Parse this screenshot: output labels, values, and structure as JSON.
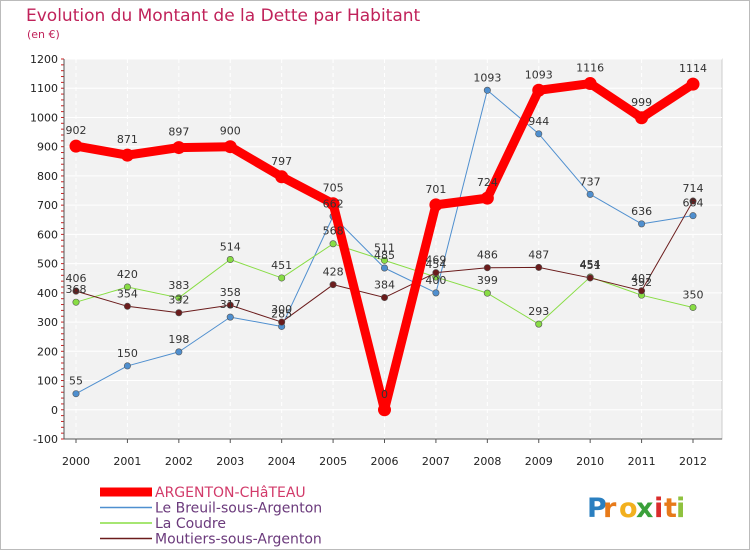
{
  "chart_data": {
    "type": "line",
    "title": "Evolution du Montant de la Dette par Habitant",
    "subtitle": "(en €)",
    "xlabel": "",
    "ylabel": "",
    "categories": [
      "2000",
      "2001",
      "2002",
      "2003",
      "2004",
      "2005",
      "2006",
      "2007",
      "2008",
      "2009",
      "2010",
      "2011",
      "2012"
    ],
    "ylim": [
      -100,
      1200
    ],
    "yticks": [
      -100,
      0,
      100,
      200,
      300,
      400,
      500,
      600,
      700,
      800,
      900,
      1000,
      1100,
      1200
    ],
    "grid": true,
    "legend_position": "bottom-left",
    "series": [
      {
        "name": "ARGENTON-CHâTEAU",
        "color": "#ff0000",
        "values": [
          902,
          871,
          897,
          900,
          797,
          705,
          0,
          701,
          724,
          1093,
          1116,
          999,
          1114
        ]
      },
      {
        "name": "Le Breuil-sous-Argenton",
        "color": "#4f8fcf",
        "values": [
          55,
          150,
          198,
          317,
          285,
          662,
          485,
          400,
          1093,
          944,
          737,
          636,
          664
        ]
      },
      {
        "name": "La Coudre",
        "color": "#88dd44",
        "values": [
          368,
          420,
          383,
          514,
          451,
          568,
          511,
          454,
          399,
          293,
          454,
          392,
          350
        ]
      },
      {
        "name": "Moutiers-sous-Argenton",
        "color": "#6b1c1c",
        "values": [
          406,
          354,
          332,
          358,
          300,
          428,
          384,
          469,
          486,
          487,
          451,
          407,
          714
        ]
      }
    ]
  },
  "legend": {
    "items": [
      "ARGENTON-CHâTEAU",
      "Le Breuil-sous-Argenton",
      "La Coudre",
      "Moutiers-sous-Argenton"
    ]
  },
  "brand": {
    "letters": [
      "P",
      "r",
      "o",
      "x",
      "i",
      "t",
      "i"
    ],
    "colors": [
      "#2a7fc0",
      "#e77a1a",
      "#f2b01e",
      "#3aa03a",
      "#d92c2c",
      "#e77a1a",
      "#8fc23e"
    ]
  }
}
